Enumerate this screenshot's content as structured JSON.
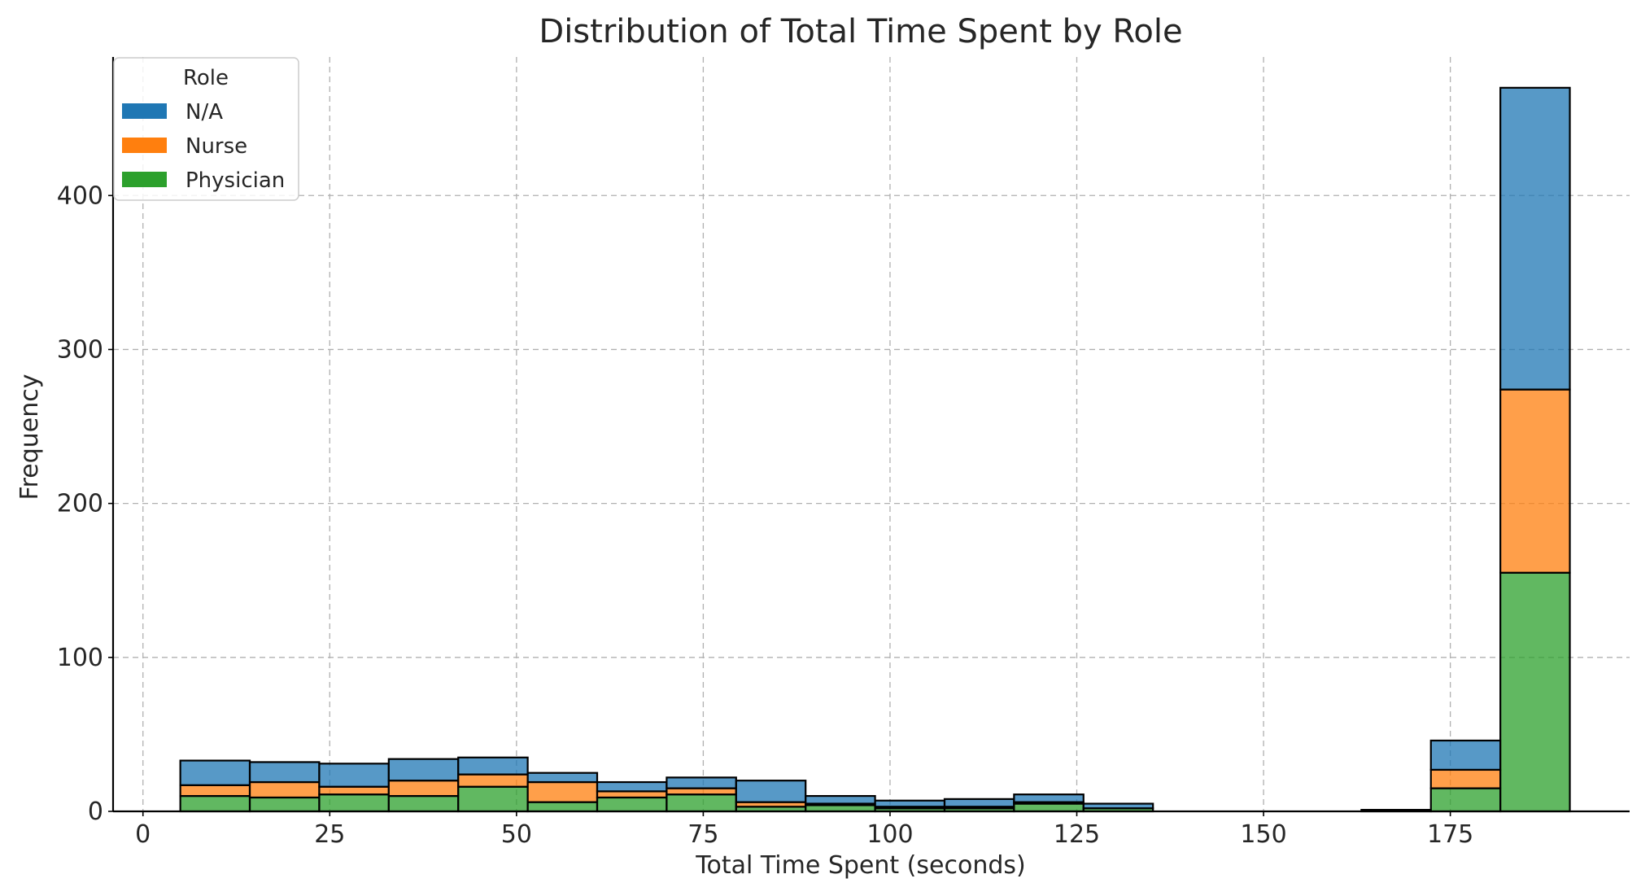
{
  "chart_data": {
    "type": "bar",
    "stacked": true,
    "title": "Distribution of Total Time Spent by Role",
    "xlabel": "Total Time Spent (seconds)",
    "ylabel": "Frequency",
    "xlim": [
      -4,
      199
    ],
    "ylim": [
      0,
      490
    ],
    "xticks": [
      0,
      25,
      50,
      75,
      100,
      125,
      150,
      175
    ],
    "yticks": [
      0,
      100,
      200,
      300,
      400
    ],
    "grid": true,
    "legend": {
      "title": "Role",
      "placement": "upper-left"
    },
    "bin_edges": [
      5.0,
      14.3,
      23.6,
      32.9,
      42.2,
      51.5,
      60.8,
      70.1,
      79.4,
      88.7,
      98.0,
      107.3,
      116.6,
      125.9,
      135.2,
      144.5,
      153.8,
      163.1,
      172.4,
      181.7,
      191.0
    ],
    "series": [
      {
        "name": "Physician",
        "color": "#2ca02c",
        "values": [
          10,
          9,
          11,
          10,
          16,
          6,
          9,
          11,
          3,
          4,
          2,
          2,
          5,
          2,
          0,
          0,
          0,
          0,
          15,
          155
        ]
      },
      {
        "name": "Nurse",
        "color": "#ff7f0e",
        "values": [
          7,
          10,
          5,
          10,
          8,
          13,
          4,
          4,
          3,
          1,
          1,
          1,
          1,
          0,
          0,
          0,
          0,
          0,
          12,
          119
        ]
      },
      {
        "name": "N/A",
        "color": "#1f77b4",
        "values": [
          16,
          13,
          15,
          14,
          11,
          6,
          6,
          7,
          14,
          5,
          4,
          5,
          5,
          3,
          0,
          0,
          0,
          1,
          19,
          196
        ]
      }
    ]
  }
}
